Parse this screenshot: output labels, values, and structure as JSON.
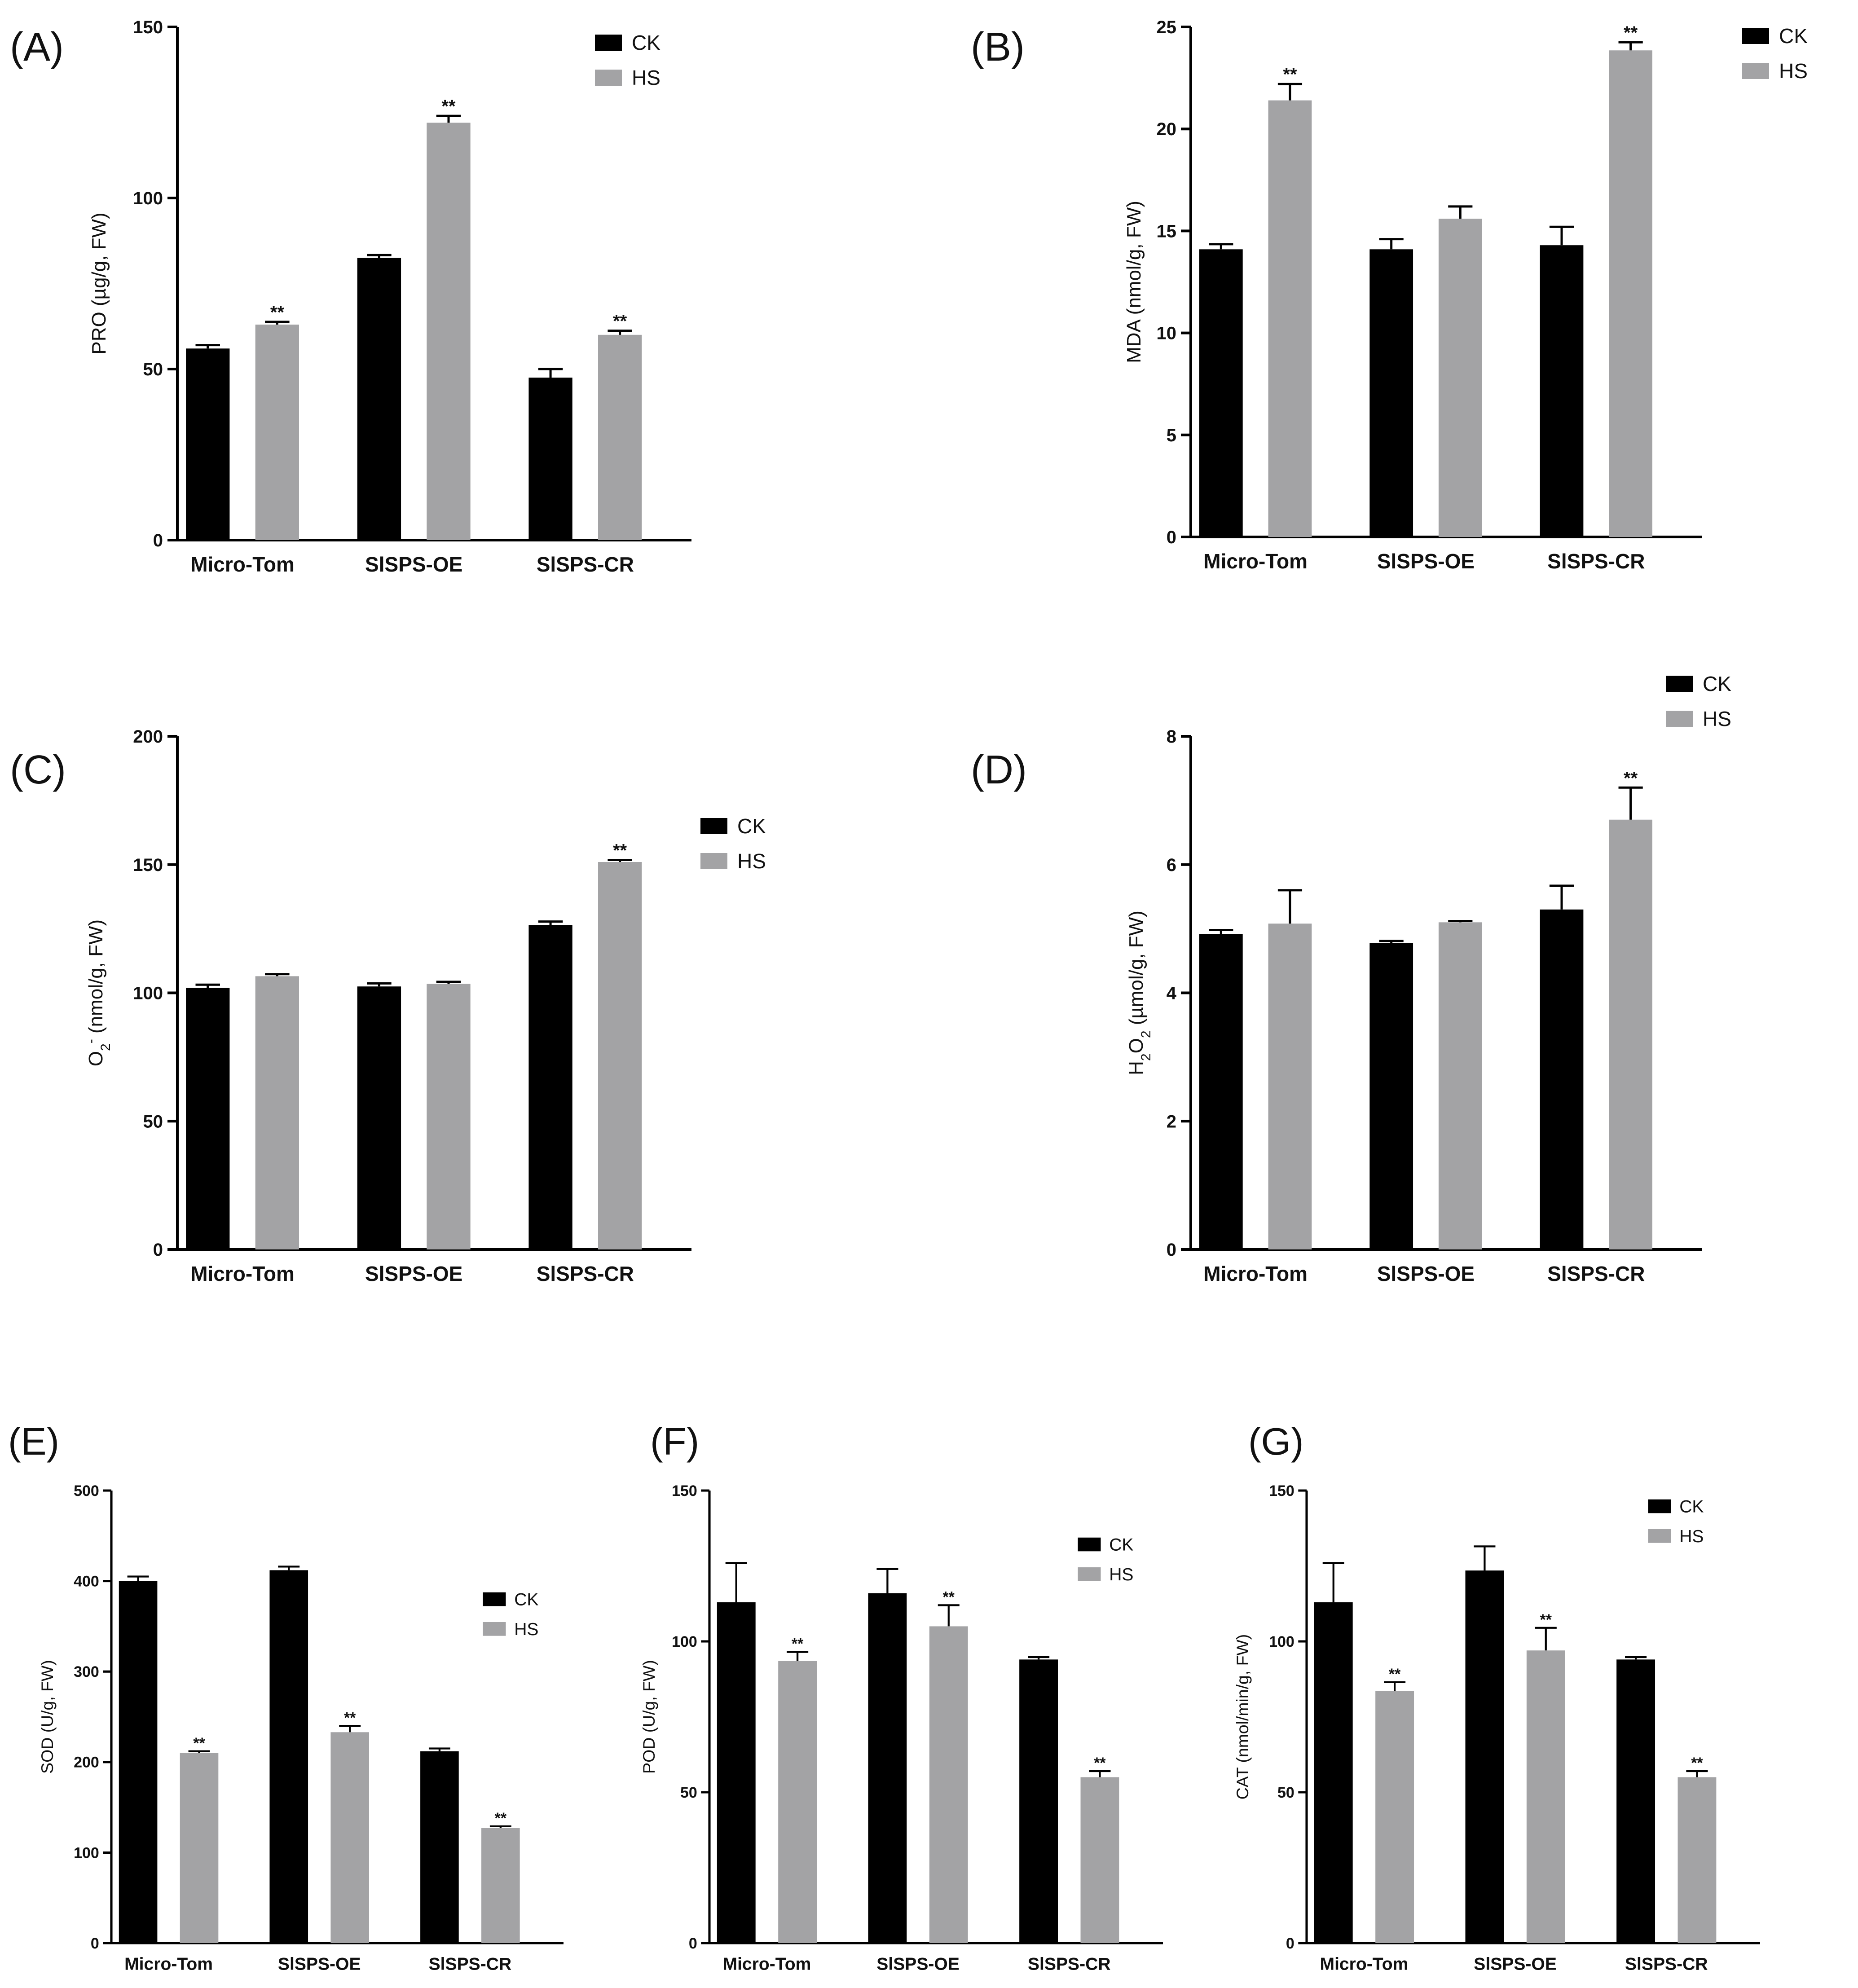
{
  "colors": {
    "CK": "#000000",
    "HS": "#a3a3a5",
    "axis": "#000000"
  },
  "chart_data": [
    {
      "panel_label": "(A)",
      "type": "bar",
      "categories": [
        "Micro-Tom",
        "SlSPS-OE",
        "SlSPS-CR"
      ],
      "ylabel": "PRO (µg/g, FW)",
      "ylim": [
        0,
        150
      ],
      "yticks": [
        "0",
        "50",
        "100",
        "150"
      ],
      "legend": "top-right",
      "series": [
        {
          "name": "CK",
          "values": [
            56,
            82.5,
            47.5
          ],
          "errors": [
            1,
            0.8,
            2.5
          ],
          "sig": [
            "",
            "",
            ""
          ]
        },
        {
          "name": "HS",
          "values": [
            63,
            122,
            60
          ],
          "errors": [
            0.8,
            2,
            1.2
          ],
          "sig": [
            "**",
            "**",
            "**"
          ]
        }
      ]
    },
    {
      "panel_label": "(B)",
      "type": "bar",
      "categories": [
        "Micro-Tom",
        "SlSPS-OE",
        "SlSPS-CR"
      ],
      "ylabel": "MDA (nmol/g, FW)",
      "ylim": [
        0,
        25
      ],
      "yticks": [
        "0",
        "5",
        "10",
        "15",
        "20",
        "25"
      ],
      "legend": "top-right",
      "series": [
        {
          "name": "CK",
          "values": [
            14.1,
            14.1,
            14.3
          ],
          "errors": [
            0.25,
            0.5,
            0.9
          ],
          "sig": [
            "",
            "",
            ""
          ]
        },
        {
          "name": "HS",
          "values": [
            21.4,
            15.6,
            23.85
          ],
          "errors": [
            0.8,
            0.6,
            0.4
          ],
          "sig": [
            "**",
            "",
            "**"
          ]
        }
      ]
    },
    {
      "panel_label": "(C)",
      "type": "bar",
      "categories": [
        "Micro-Tom",
        "SlSPS-OE",
        "SlSPS-CR"
      ],
      "ylabel": "O2- (nmol/g, FW)",
      "ylim": [
        0,
        200
      ],
      "yticks": [
        "0",
        "50",
        "100",
        "150",
        "200"
      ],
      "legend": "right",
      "series": [
        {
          "name": "CK",
          "values": [
            102,
            102.5,
            126.5
          ],
          "errors": [
            1.2,
            1.2,
            1.3
          ],
          "sig": [
            "",
            "",
            ""
          ]
        },
        {
          "name": "HS",
          "values": [
            106.5,
            103.5,
            151
          ],
          "errors": [
            0.8,
            0.8,
            0.8
          ],
          "sig": [
            "",
            "",
            "**"
          ]
        }
      ]
    },
    {
      "panel_label": "(D)",
      "type": "bar",
      "categories": [
        "Micro-Tom",
        "SlSPS-OE",
        "SlSPS-CR"
      ],
      "ylabel": "H2O2 (µmol/g, FW)",
      "ylim": [
        0,
        8
      ],
      "yticks": [
        "0",
        "2",
        "4",
        "6",
        "8"
      ],
      "legend": "top-right",
      "series": [
        {
          "name": "CK",
          "values": [
            4.92,
            4.78,
            5.3
          ],
          "errors": [
            0.06,
            0.03,
            0.37
          ],
          "sig": [
            "",
            "",
            ""
          ]
        },
        {
          "name": "HS",
          "values": [
            5.08,
            5.1,
            6.7
          ],
          "errors": [
            0.52,
            0.02,
            0.5
          ],
          "sig": [
            "",
            "",
            "**"
          ]
        }
      ]
    },
    {
      "panel_label": "(E)",
      "type": "bar",
      "categories": [
        "Micro-Tom",
        "SlSPS-OE",
        "SlSPS-CR"
      ],
      "ylabel": "SOD (U/g, FW)",
      "ylim": [
        0,
        500
      ],
      "yticks": [
        "0",
        "100",
        "200",
        "300",
        "400",
        "500"
      ],
      "legend": "right",
      "series": [
        {
          "name": "CK",
          "values": [
            400,
            412,
            212
          ],
          "errors": [
            5,
            4,
            3
          ],
          "sig": [
            "",
            "",
            ""
          ]
        },
        {
          "name": "HS",
          "values": [
            210,
            233,
            127
          ],
          "errors": [
            2,
            7,
            2
          ],
          "sig": [
            "**",
            "**",
            "**"
          ]
        }
      ]
    },
    {
      "panel_label": "(F)",
      "type": "bar",
      "categories": [
        "Micro-Tom",
        "SlSPS-OE",
        "SlSPS-CR"
      ],
      "ylabel": "POD (U/g, FW)",
      "ylim": [
        0,
        150
      ],
      "yticks": [
        "0",
        "50",
        "100",
        "150"
      ],
      "legend": "right",
      "series": [
        {
          "name": "CK",
          "values": [
            113,
            116,
            94
          ],
          "errors": [
            13,
            8,
            0.8
          ],
          "sig": [
            "",
            "",
            ""
          ]
        },
        {
          "name": "HS",
          "values": [
            93.5,
            105,
            55
          ],
          "errors": [
            3,
            7,
            2
          ],
          "sig": [
            "**",
            "**",
            "**"
          ]
        }
      ]
    },
    {
      "panel_label": "(G)",
      "type": "bar",
      "categories": [
        "Micro-Tom",
        "SlSPS-OE",
        "SlSPS-CR"
      ],
      "ylabel": "CAT (nmol/min/g, FW)",
      "ylim": [
        0,
        150
      ],
      "yticks": [
        "0",
        "50",
        "100",
        "150"
      ],
      "legend": "top-right",
      "series": [
        {
          "name": "CK",
          "values": [
            113,
            123.5,
            94
          ],
          "errors": [
            13,
            8,
            0.8
          ],
          "sig": [
            "",
            "",
            ""
          ]
        },
        {
          "name": "HS",
          "values": [
            83.5,
            97,
            55
          ],
          "errors": [
            3,
            7.5,
            2
          ],
          "sig": [
            "**",
            "**",
            "**"
          ]
        }
      ]
    }
  ]
}
